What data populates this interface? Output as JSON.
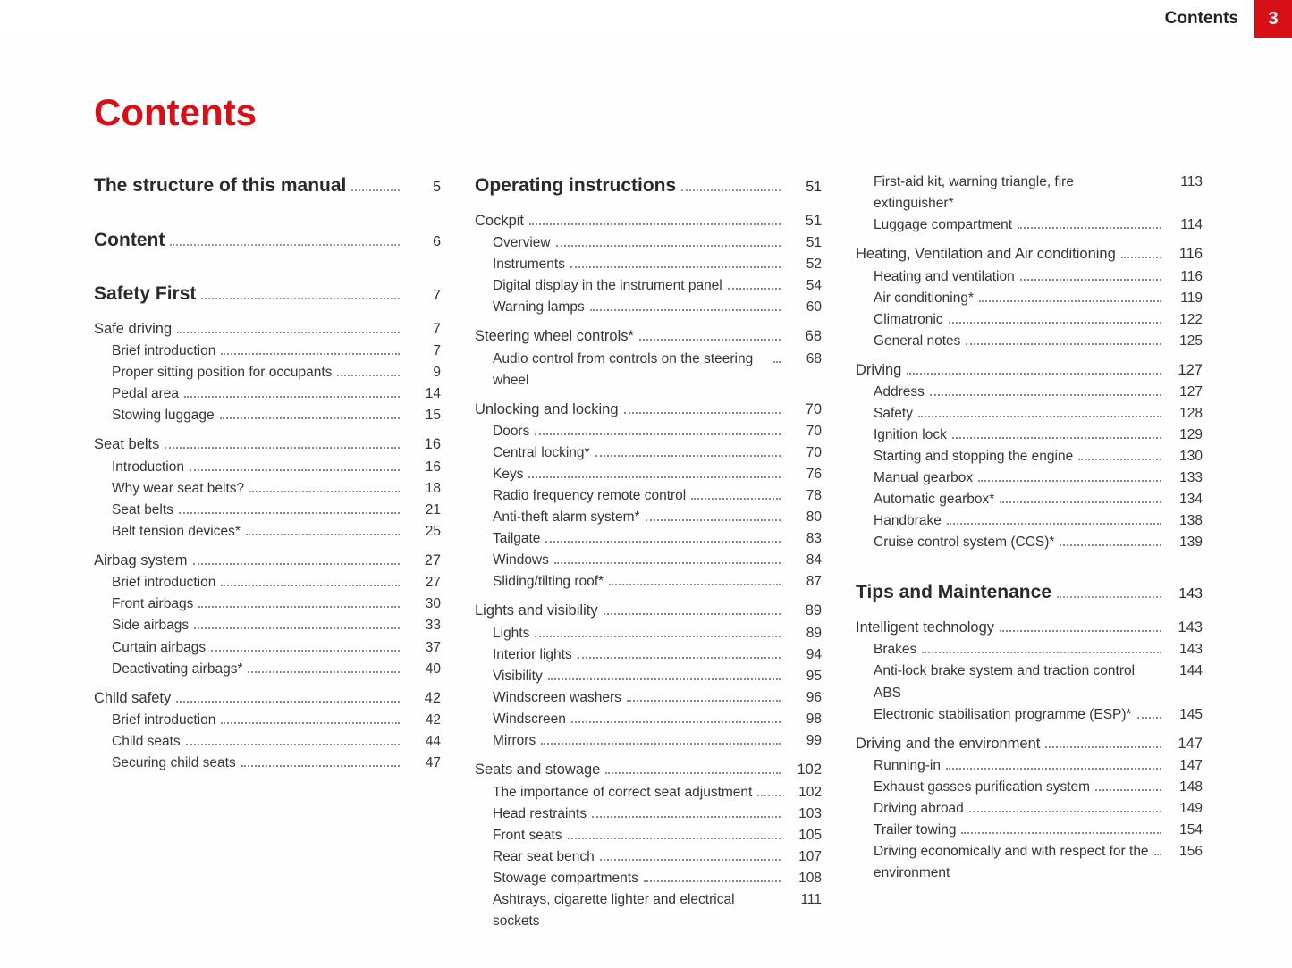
{
  "header": {
    "label": "Contents",
    "page_tab": "3"
  },
  "title": "Contents",
  "accent_color": "#d90f16",
  "text_color": "#2a2a2a",
  "font_family": "Segoe UI, Arial, sans-serif",
  "columns": [
    [
      {
        "level": "chapter",
        "label": "The structure of this manual",
        "page": "5"
      },
      {
        "level": "chapter",
        "label": "Content",
        "page": "6"
      },
      {
        "level": "chapter",
        "label": "Safety First",
        "page": "7"
      },
      {
        "level": "section",
        "label": "Safe driving",
        "page": "7"
      },
      {
        "level": "sub",
        "label": "Brief introduction",
        "page": "7"
      },
      {
        "level": "sub",
        "label": "Proper sitting position for occupants",
        "page": "9"
      },
      {
        "level": "sub",
        "label": "Pedal area",
        "page": "14"
      },
      {
        "level": "sub",
        "label": "Stowing luggage",
        "page": "15"
      },
      {
        "level": "section",
        "label": "Seat belts",
        "page": "16"
      },
      {
        "level": "sub",
        "label": "Introduction",
        "page": "16"
      },
      {
        "level": "sub",
        "label": "Why wear seat belts?",
        "page": "18"
      },
      {
        "level": "sub",
        "label": "Seat belts",
        "page": "21"
      },
      {
        "level": "sub",
        "label": "Belt tension devices*",
        "page": "25"
      },
      {
        "level": "section",
        "label": "Airbag system",
        "page": "27"
      },
      {
        "level": "sub",
        "label": "Brief introduction",
        "page": "27"
      },
      {
        "level": "sub",
        "label": "Front airbags",
        "page": "30"
      },
      {
        "level": "sub",
        "label": "Side airbags",
        "page": "33"
      },
      {
        "level": "sub",
        "label": "Curtain airbags",
        "page": "37"
      },
      {
        "level": "sub",
        "label": "Deactivating airbags*",
        "page": "40"
      },
      {
        "level": "section",
        "label": "Child safety",
        "page": "42"
      },
      {
        "level": "sub",
        "label": "Brief introduction",
        "page": "42"
      },
      {
        "level": "sub",
        "label": "Child seats",
        "page": "44"
      },
      {
        "level": "sub",
        "label": "Securing child seats",
        "page": "47"
      }
    ],
    [
      {
        "level": "chapter",
        "label": "Operating instructions",
        "page": "51"
      },
      {
        "level": "section",
        "label": "Cockpit",
        "page": "51"
      },
      {
        "level": "sub",
        "label": "Overview",
        "page": "51"
      },
      {
        "level": "sub",
        "label": "Instruments",
        "page": "52"
      },
      {
        "level": "sub",
        "label": "Digital display in the instrument panel",
        "page": "54"
      },
      {
        "level": "sub",
        "label": "Warning lamps",
        "page": "60"
      },
      {
        "level": "section",
        "label": "Steering wheel controls*",
        "page": "68"
      },
      {
        "level": "sub",
        "label": "Audio control from controls on the steering wheel",
        "page": "68"
      },
      {
        "level": "section",
        "label": "Unlocking and locking",
        "page": "70"
      },
      {
        "level": "sub",
        "label": "Doors",
        "page": "70"
      },
      {
        "level": "sub",
        "label": "Central locking*",
        "page": "70"
      },
      {
        "level": "sub",
        "label": "Keys",
        "page": "76"
      },
      {
        "level": "sub",
        "label": "Radio frequency remote control",
        "page": "78"
      },
      {
        "level": "sub",
        "label": "Anti-theft alarm system*",
        "page": "80"
      },
      {
        "level": "sub",
        "label": "Tailgate",
        "page": "83"
      },
      {
        "level": "sub",
        "label": "Windows",
        "page": "84"
      },
      {
        "level": "sub",
        "label": "Sliding/tilting roof*",
        "page": "87"
      },
      {
        "level": "section",
        "label": "Lights and visibility",
        "page": "89"
      },
      {
        "level": "sub",
        "label": "Lights",
        "page": "89"
      },
      {
        "level": "sub",
        "label": "Interior lights",
        "page": "94"
      },
      {
        "level": "sub",
        "label": "Visibility",
        "page": "95"
      },
      {
        "level": "sub",
        "label": "Windscreen washers",
        "page": "96"
      },
      {
        "level": "sub",
        "label": "Windscreen",
        "page": "98"
      },
      {
        "level": "sub",
        "label": "Mirrors",
        "page": "99"
      },
      {
        "level": "section",
        "label": "Seats and stowage",
        "page": "102"
      },
      {
        "level": "sub",
        "label": "The importance of correct seat adjustment",
        "page": "102"
      },
      {
        "level": "sub",
        "label": "Head restraints",
        "page": "103"
      },
      {
        "level": "sub",
        "label": "Front seats",
        "page": "105"
      },
      {
        "level": "sub",
        "label": "Rear seat bench",
        "page": "107"
      },
      {
        "level": "sub",
        "label": "Stowage compartments",
        "page": "108"
      },
      {
        "level": "sub",
        "label": "Ashtrays, cigarette lighter and electrical sockets",
        "page": "111",
        "noleader": true
      }
    ],
    [
      {
        "level": "sub",
        "label": "First-aid kit, warning triangle, fire extinguisher*",
        "page": "113",
        "noleader": true
      },
      {
        "level": "sub",
        "label": "Luggage compartment",
        "page": "114"
      },
      {
        "level": "section",
        "label": "Heating, Ventilation and Air conditioning",
        "page": "116"
      },
      {
        "level": "sub",
        "label": "Heating and ventilation",
        "page": "116"
      },
      {
        "level": "sub",
        "label": "Air conditioning*",
        "page": "119"
      },
      {
        "level": "sub",
        "label": "Climatronic",
        "page": "122"
      },
      {
        "level": "sub",
        "label": "General notes",
        "page": "125"
      },
      {
        "level": "section",
        "label": "Driving",
        "page": "127"
      },
      {
        "level": "sub",
        "label": "Address",
        "page": "127"
      },
      {
        "level": "sub",
        "label": "Safety",
        "page": "128"
      },
      {
        "level": "sub",
        "label": "Ignition lock",
        "page": "129"
      },
      {
        "level": "sub",
        "label": "Starting and stopping the engine",
        "page": "130"
      },
      {
        "level": "sub",
        "label": "Manual gearbox",
        "page": "133"
      },
      {
        "level": "sub",
        "label": "Automatic gearbox*",
        "page": "134"
      },
      {
        "level": "sub",
        "label": "Handbrake",
        "page": "138"
      },
      {
        "level": "sub",
        "label": "Cruise control system (CCS)*",
        "page": "139"
      },
      {
        "level": "chapter",
        "label": "Tips and Maintenance",
        "page": "143"
      },
      {
        "level": "section",
        "label": "Intelligent technology",
        "page": "143"
      },
      {
        "level": "sub",
        "label": "Brakes",
        "page": "143"
      },
      {
        "level": "sub",
        "label": "Anti-lock brake system and traction control ABS",
        "page": "144",
        "noleader": true
      },
      {
        "level": "sub",
        "label": "Electronic stabilisation programme (ESP)*",
        "page": "145"
      },
      {
        "level": "section",
        "label": "Driving and the environment",
        "page": "147"
      },
      {
        "level": "sub",
        "label": "Running-in",
        "page": "147"
      },
      {
        "level": "sub",
        "label": "Exhaust gasses purification system",
        "page": "148"
      },
      {
        "level": "sub",
        "label": "Driving abroad",
        "page": "149"
      },
      {
        "level": "sub",
        "label": "Trailer towing",
        "page": "154"
      },
      {
        "level": "sub",
        "label": "Driving economically and with respect for the environment",
        "page": "156"
      }
    ]
  ]
}
